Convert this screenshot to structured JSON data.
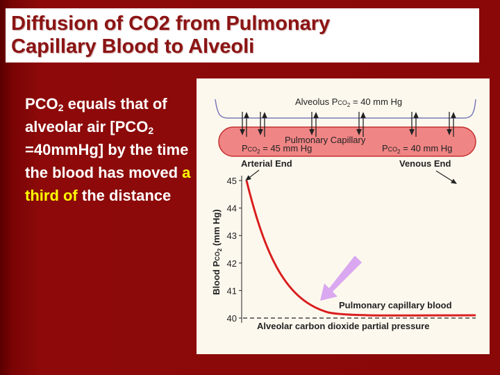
{
  "title": "Diffusion of CO2 from Pulmonary Capillary Blood to Alveoli",
  "body": [
    "PCO",
    "2",
    " equals that of alveolar air [PCO",
    "2",
    " =40mmHg] by the time the blood has moved ",
    "a third of",
    " the distance"
  ],
  "figure": {
    "alveolus": [
      "Alveolus P",
      "CO",
      "2",
      " = 40 mm Hg"
    ],
    "capillary": "Pulmonary Capillary",
    "arterial_pco2": [
      "P",
      "CO",
      "2",
      " = 45 mm Hg"
    ],
    "venous_pco2": [
      "P",
      "CO",
      "2",
      " = 40 mm Hg"
    ],
    "arterial_end": "Arterial End",
    "venous_end": "Venous End",
    "y_label": [
      "Blood P",
      "CO",
      "2",
      " (mm Hg)"
    ],
    "ylim": [
      40,
      45
    ],
    "yticks": [
      40,
      41,
      42,
      43,
      44,
      45
    ],
    "curve_label": "Pulmonary capillary blood",
    "baseline_label": "Alveolar carbon dioxide partial pressure"
  }
}
